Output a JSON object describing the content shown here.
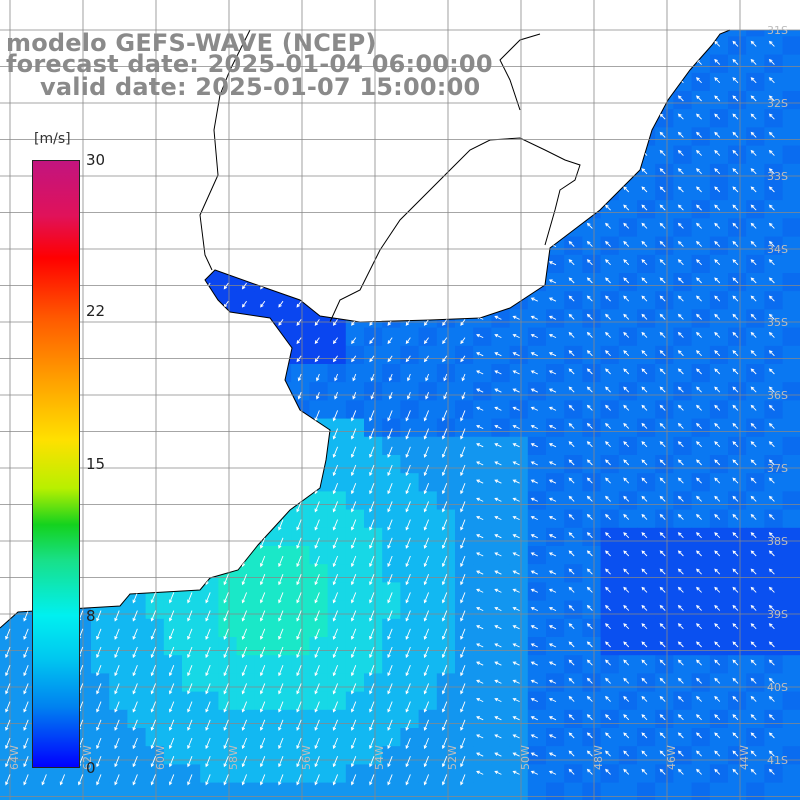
{
  "title": {
    "line1": "modelo GEFS-WAVE (NCEP)",
    "line2": "forecast date: 2025-01-04 06:00:00",
    "line3": "valid date: 2025-01-07 15:00:00"
  },
  "colorbar": {
    "unit": "[m/s]",
    "min": 0,
    "max": 30,
    "ticks": [
      "30",
      "22",
      "15",
      "8",
      "0"
    ],
    "tick_values": [
      30,
      22,
      15,
      8,
      0
    ]
  },
  "axes": {
    "lon_labels": [
      "64W",
      "62W",
      "60W",
      "58W",
      "56W",
      "54W",
      "52W",
      "50W",
      "48W",
      "46W",
      "44W"
    ],
    "lat_labels": [
      "31S",
      "32S",
      "33S",
      "34S",
      "35S",
      "36S",
      "37S",
      "38S",
      "39S",
      "40S",
      "41S"
    ]
  },
  "colors": {
    "land": "#ffffff",
    "coast": "#000000",
    "grid": "#888888",
    "arrow": "#ffffff",
    "label": "#8a8a8a"
  }
}
